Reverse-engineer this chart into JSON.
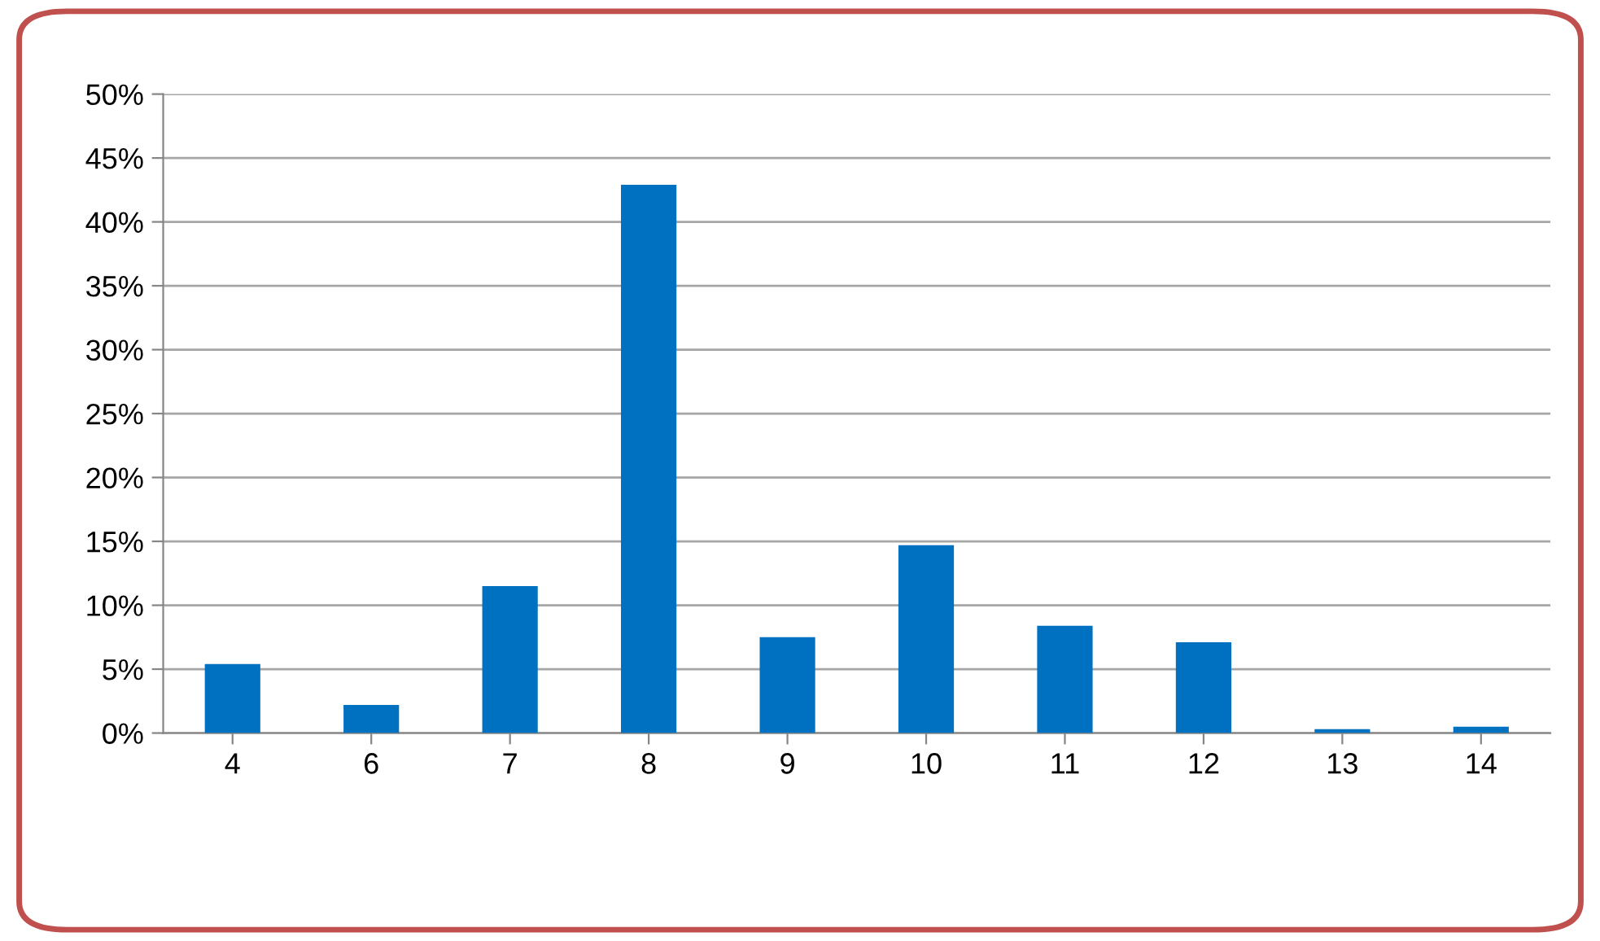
{
  "chart_data": {
    "type": "bar",
    "categories": [
      "4",
      "6",
      "7",
      "8",
      "9",
      "10",
      "11",
      "12",
      "13",
      "14"
    ],
    "values": [
      5.4,
      2.2,
      11.5,
      42.9,
      7.5,
      14.7,
      8.4,
      7.1,
      0.3,
      0.5
    ],
    "color": "#0070c0",
    "ylim": [
      0,
      50
    ],
    "yticks": [
      {
        "value": 0,
        "label": "0%"
      },
      {
        "value": 5,
        "label": "5%"
      },
      {
        "value": 10,
        "label": "10%"
      },
      {
        "value": 15,
        "label": "15%"
      },
      {
        "value": 20,
        "label": "20%"
      },
      {
        "value": 25,
        "label": "25%"
      },
      {
        "value": 30,
        "label": "30%"
      },
      {
        "value": 35,
        "label": "35%"
      },
      {
        "value": 40,
        "label": "40%"
      },
      {
        "value": 45,
        "label": "45%"
      },
      {
        "value": 50,
        "label": "50%"
      }
    ],
    "grid": "y"
  }
}
